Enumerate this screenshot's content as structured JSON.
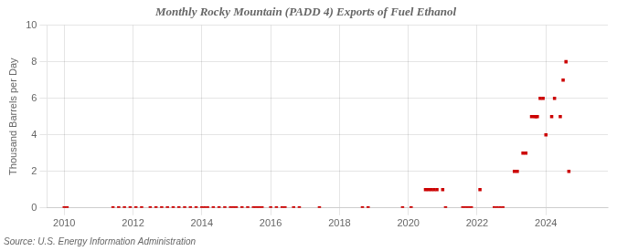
{
  "chart_data": {
    "type": "scatter",
    "title": "Monthly Rocky Mountain (PADD 4) Exports of Fuel Ethanol",
    "y_label": "Thousand Barrels per Day",
    "annotations": [
      "Source: U.S. Energy Information Administration"
    ],
    "color": "#cc0000",
    "marker": "square",
    "grid": true,
    "xlim": [
      2009.5,
      2025.8
    ],
    "xticks": [
      2010,
      2012,
      2014,
      2016,
      2018,
      2020,
      2022,
      2024
    ],
    "ylim": [
      0,
      10
    ],
    "yticks": [
      0,
      2,
      4,
      6,
      8,
      10
    ],
    "x": [
      2010.0,
      2010.083,
      2011.417,
      2011.583,
      2011.75,
      2011.917,
      2012.083,
      2012.25,
      2012.5,
      2012.667,
      2012.833,
      2013.0,
      2013.167,
      2013.333,
      2013.5,
      2013.667,
      2013.833,
      2014.0,
      2014.083,
      2014.167,
      2014.333,
      2014.5,
      2014.667,
      2014.833,
      2014.917,
      2015.0,
      2015.167,
      2015.333,
      2015.5,
      2015.583,
      2015.667,
      2015.75,
      2016.0,
      2016.167,
      2016.333,
      2016.417,
      2016.667,
      2016.833,
      2017.417,
      2018.667,
      2018.833,
      2019.833,
      2020.083,
      2020.5,
      2020.583,
      2020.667,
      2020.75,
      2020.833,
      2021.0,
      2021.083,
      2021.583,
      2021.667,
      2021.75,
      2021.833,
      2022.083,
      2022.5,
      2022.583,
      2022.667,
      2022.75,
      2023.083,
      2023.167,
      2023.333,
      2023.417,
      2023.583,
      2023.667,
      2023.708,
      2023.75,
      2023.833,
      2023.917,
      2024.0,
      2024.167,
      2024.25,
      2024.417,
      2024.5,
      2024.583,
      2024.667
    ],
    "values": [
      0.0,
      0.0,
      0.0,
      0.0,
      0.0,
      0.0,
      0.0,
      0.0,
      0.0,
      0.0,
      0.0,
      0.0,
      0.0,
      0.0,
      0.0,
      0.0,
      0.0,
      0.0,
      0.0,
      0.0,
      0.0,
      0.0,
      0.0,
      0.0,
      0.0,
      0.0,
      0.0,
      0.0,
      0.0,
      0.0,
      0.0,
      0.0,
      0.0,
      0.0,
      0.0,
      0.0,
      0.0,
      0.0,
      0.0,
      0.0,
      0.0,
      0.0,
      0.0,
      1.0,
      1.0,
      1.0,
      1.0,
      1.0,
      1.0,
      0.0,
      0.0,
      0.0,
      0.0,
      0.0,
      1.0,
      0.0,
      0.0,
      0.0,
      0.0,
      2.0,
      2.0,
      3.0,
      3.0,
      5.0,
      5.0,
      5.0,
      5.0,
      6.0,
      6.0,
      4.0,
      5.0,
      6.0,
      5.0,
      7.0,
      8.0,
      2.0
    ]
  }
}
